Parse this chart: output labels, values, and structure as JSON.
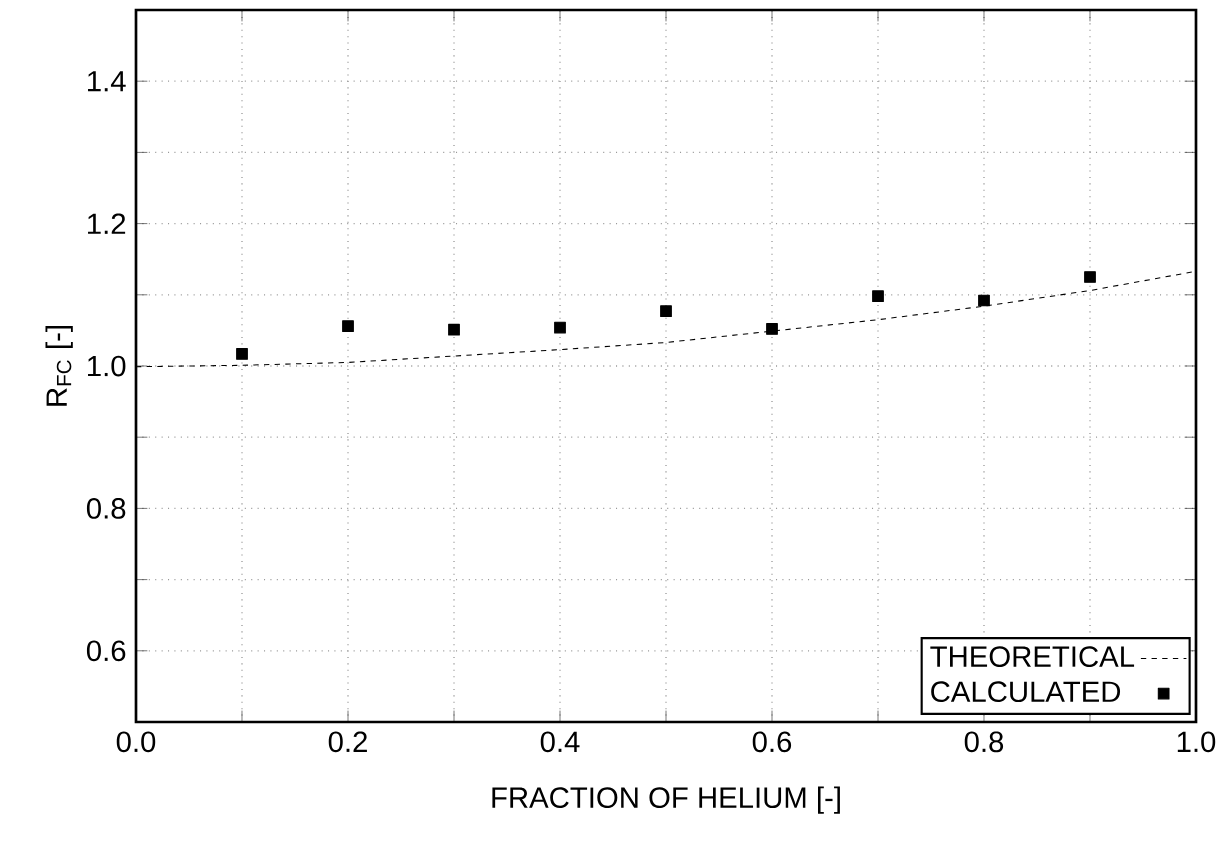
{
  "chart_data": {
    "type": "scatter",
    "xlabel": "FRACTION OF HELIUM [-]",
    "ylabel": "R$_{FC}$ [-]",
    "xlim": [
      0,
      1
    ],
    "ylim": [
      0.5,
      1.5
    ],
    "xticks": [
      {
        "value": 0,
        "label": "0.0"
      },
      {
        "value": 0.1,
        "label": null
      },
      0.2,
      {
        "value": 0.3,
        "label": null
      },
      0.4,
      {
        "value": 0.5,
        "label": null
      },
      0.6,
      {
        "value": 0.7,
        "label": null
      },
      0.8,
      {
        "value": 0.9,
        "label": null
      },
      {
        "value": 1,
        "label": "1.0"
      }
    ],
    "yticks": [
      {
        "value": 0.5,
        "label": null
      },
      0.6,
      {
        "value": 0.7,
        "label": null
      },
      0.8,
      {
        "value": 0.9,
        "label": null
      },
      {
        "value": 1,
        "label": "1.0"
      },
      {
        "value": 1.1,
        "label": null
      },
      1.2,
      {
        "value": 1.3,
        "label": null
      },
      1.4,
      {
        "value": 1.5,
        "label": null
      }
    ],
    "grid": true,
    "legend": "bottom right",
    "series": [
      {
        "name": "THEORETICAL",
        "type": "line",
        "line_style": "dashed",
        "marker": "none",
        "color": "#000000",
        "x": [
          0,
          0.1,
          0.2,
          0.3,
          0.4,
          0.5,
          0.6,
          0.7,
          0.8,
          0.9,
          1.0
        ],
        "values": [
          0.999,
          1.001,
          1.005,
          1.014,
          1.023,
          1.033,
          1.049,
          1.065,
          1.084,
          1.106,
          1.133
        ]
      },
      {
        "name": "CALCULATED",
        "marker": "square",
        "color": "#000000",
        "x": [
          0.1,
          0.2,
          0.3,
          0.4,
          0.5,
          0.6,
          0.7,
          0.8,
          0.9
        ],
        "values": [
          1.017,
          1.056,
          1.051,
          1.054,
          1.077,
          1.052,
          1.098,
          1.092,
          1.125
        ]
      }
    ]
  }
}
